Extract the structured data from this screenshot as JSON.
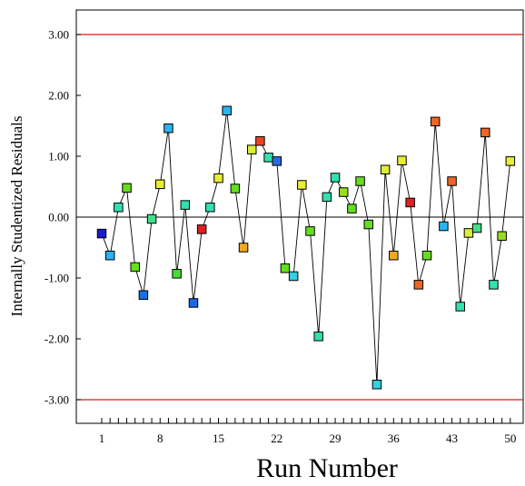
{
  "chart_data": {
    "type": "scatter",
    "title": "",
    "xlabel": "Run Number",
    "ylabel": "Internally Studentized Residuals",
    "xlim": [
      0,
      51
    ],
    "ylim": [
      -3.4,
      3.4
    ],
    "x_tick_labels": [
      "1",
      "8",
      "15",
      "22",
      "29",
      "36",
      "43",
      "50"
    ],
    "y_tick_labels": [
      "3.00",
      "2.00",
      "1.00",
      "0.00",
      "-1.00",
      "-2.00",
      "-3.00"
    ],
    "reference_lines": {
      "upper_limit": 3.0,
      "lower_limit": -3.0,
      "zero": 0.0,
      "limit_color": "#d81b1b",
      "zero_color": "#000000"
    },
    "grid": false,
    "legend": "none",
    "connect_points": true,
    "series": [
      {
        "x": [
          1,
          2,
          3,
          4,
          5,
          6,
          7,
          8,
          9,
          10,
          11,
          12,
          13,
          14,
          15,
          16,
          17,
          18,
          19,
          20,
          21,
          22,
          23,
          24,
          25,
          26,
          27,
          28,
          29,
          30,
          31,
          32,
          33,
          34,
          35,
          36,
          37,
          38,
          39,
          40,
          41,
          42,
          43,
          44,
          45,
          46,
          47,
          48,
          49,
          50
        ],
        "y": [
          -0.27,
          -0.63,
          0.16,
          0.48,
          -0.82,
          -1.28,
          -0.03,
          0.54,
          1.46,
          -0.93,
          0.2,
          -1.41,
          -0.2,
          0.16,
          0.64,
          1.75,
          0.47,
          -0.5,
          1.11,
          1.25,
          0.98,
          0.92,
          -0.84,
          -0.97,
          0.53,
          -0.23,
          -1.96,
          0.33,
          0.65,
          0.41,
          0.14,
          0.59,
          -0.12,
          -2.75,
          0.78,
          -0.63,
          0.93,
          0.24,
          -1.11,
          -0.63,
          1.57,
          -0.15,
          0.59,
          -1.47,
          -0.26,
          -0.18,
          1.39,
          -1.11,
          -0.31,
          0.92
        ],
        "colors": [
          "#1a1ad0",
          "#2ab3f0",
          "#33e0b0",
          "#66dd22",
          "#66dd22",
          "#1a70e0",
          "#44dd88",
          "#e8ee33",
          "#2ab3f0",
          "#44dd33",
          "#33e0b0",
          "#1a6ae0",
          "#e02020",
          "#33e0b0",
          "#e8ee33",
          "#2ab3f0",
          "#66dd22",
          "#eeaa22",
          "#ddee33",
          "#e84420",
          "#33e0b0",
          "#2a6ae0",
          "#66dd22",
          "#33d0e0",
          "#e8ee33",
          "#66dd22",
          "#33e0b0",
          "#33e0b0",
          "#33e0b0",
          "#99dd22",
          "#66dd22",
          "#66dd22",
          "#66dd22",
          "#33d0e0",
          "#ddee33",
          "#eeaa22",
          "#e8ee33",
          "#e02020",
          "#ee6622",
          "#66dd22",
          "#ee6622",
          "#2ab3f0",
          "#ee6622",
          "#33e0b0",
          "#ddee33",
          "#44dd88",
          "#ee6622",
          "#33e0b0",
          "#99dd22",
          "#e8ee33"
        ]
      }
    ]
  }
}
